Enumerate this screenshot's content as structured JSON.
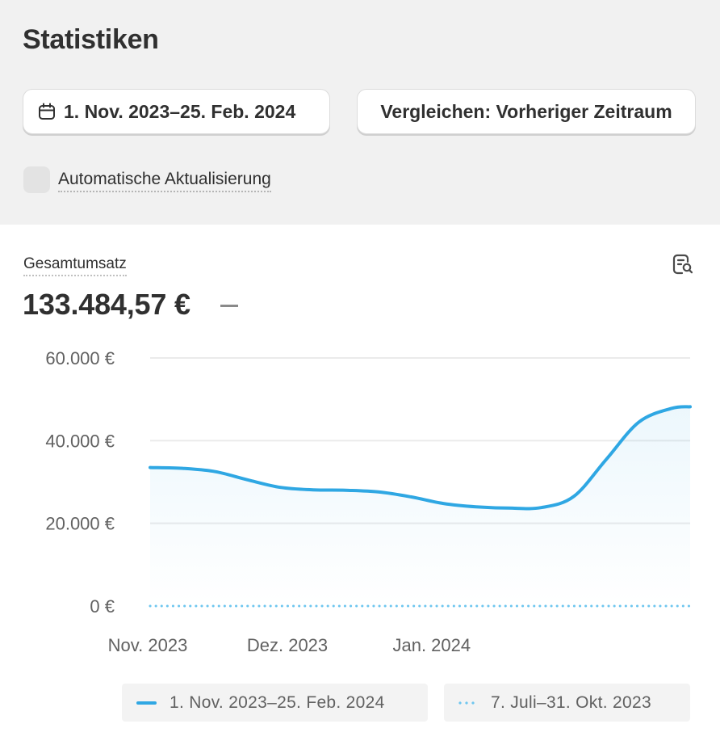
{
  "page": {
    "title": "Statistiken"
  },
  "toolbar": {
    "date_range_label": "1. Nov. 2023–25. Feb. 2024",
    "compare_label": "Vergleichen: Vorheriger Zeitraum"
  },
  "auto_update": {
    "label": "Automatische Aktualisierung",
    "checked": false
  },
  "metric": {
    "label": "Gesamtumsatz",
    "value": "133.484,57 €",
    "change": "–"
  },
  "chart_data": {
    "type": "line",
    "y_ticks": [
      "60.000 €",
      "40.000 €",
      "20.000 €",
      "0 €"
    ],
    "y_tick_values": [
      60000,
      40000,
      20000,
      0
    ],
    "ylim": [
      0,
      60000
    ],
    "x_ticks": [
      "Nov. 2023",
      "Dez. 2023",
      "Jan. 2024"
    ],
    "grid": true,
    "legend_position": "bottom",
    "series": [
      {
        "name": "1. Nov. 2023–25. Feb. 2024",
        "color": "#2fa7e3",
        "style": "solid",
        "points": [
          {
            "x": "2023-11-01",
            "y": 33500
          },
          {
            "x": "2023-11-08",
            "y": 33300
          },
          {
            "x": "2023-11-15",
            "y": 32500
          },
          {
            "x": "2023-11-22",
            "y": 30500
          },
          {
            "x": "2023-11-29",
            "y": 28700
          },
          {
            "x": "2023-12-06",
            "y": 28100
          },
          {
            "x": "2023-12-13",
            "y": 28000
          },
          {
            "x": "2023-12-20",
            "y": 27600
          },
          {
            "x": "2023-12-27",
            "y": 26400
          },
          {
            "x": "2024-01-03",
            "y": 24800
          },
          {
            "x": "2024-01-10",
            "y": 24000
          },
          {
            "x": "2024-01-17",
            "y": 23700
          },
          {
            "x": "2024-01-24",
            "y": 23800
          },
          {
            "x": "2024-01-31",
            "y": 26500
          },
          {
            "x": "2024-02-07",
            "y": 35500
          },
          {
            "x": "2024-02-14",
            "y": 44500
          },
          {
            "x": "2024-02-21",
            "y": 47800
          },
          {
            "x": "2024-02-25",
            "y": 48200
          }
        ]
      },
      {
        "name": "7. Juli–31. Okt. 2023",
        "color": "#6ec6ef",
        "style": "dotted",
        "points": [
          {
            "x": "2023-11-01",
            "y": 0
          },
          {
            "x": "2024-02-25",
            "y": 0
          }
        ]
      }
    ]
  }
}
